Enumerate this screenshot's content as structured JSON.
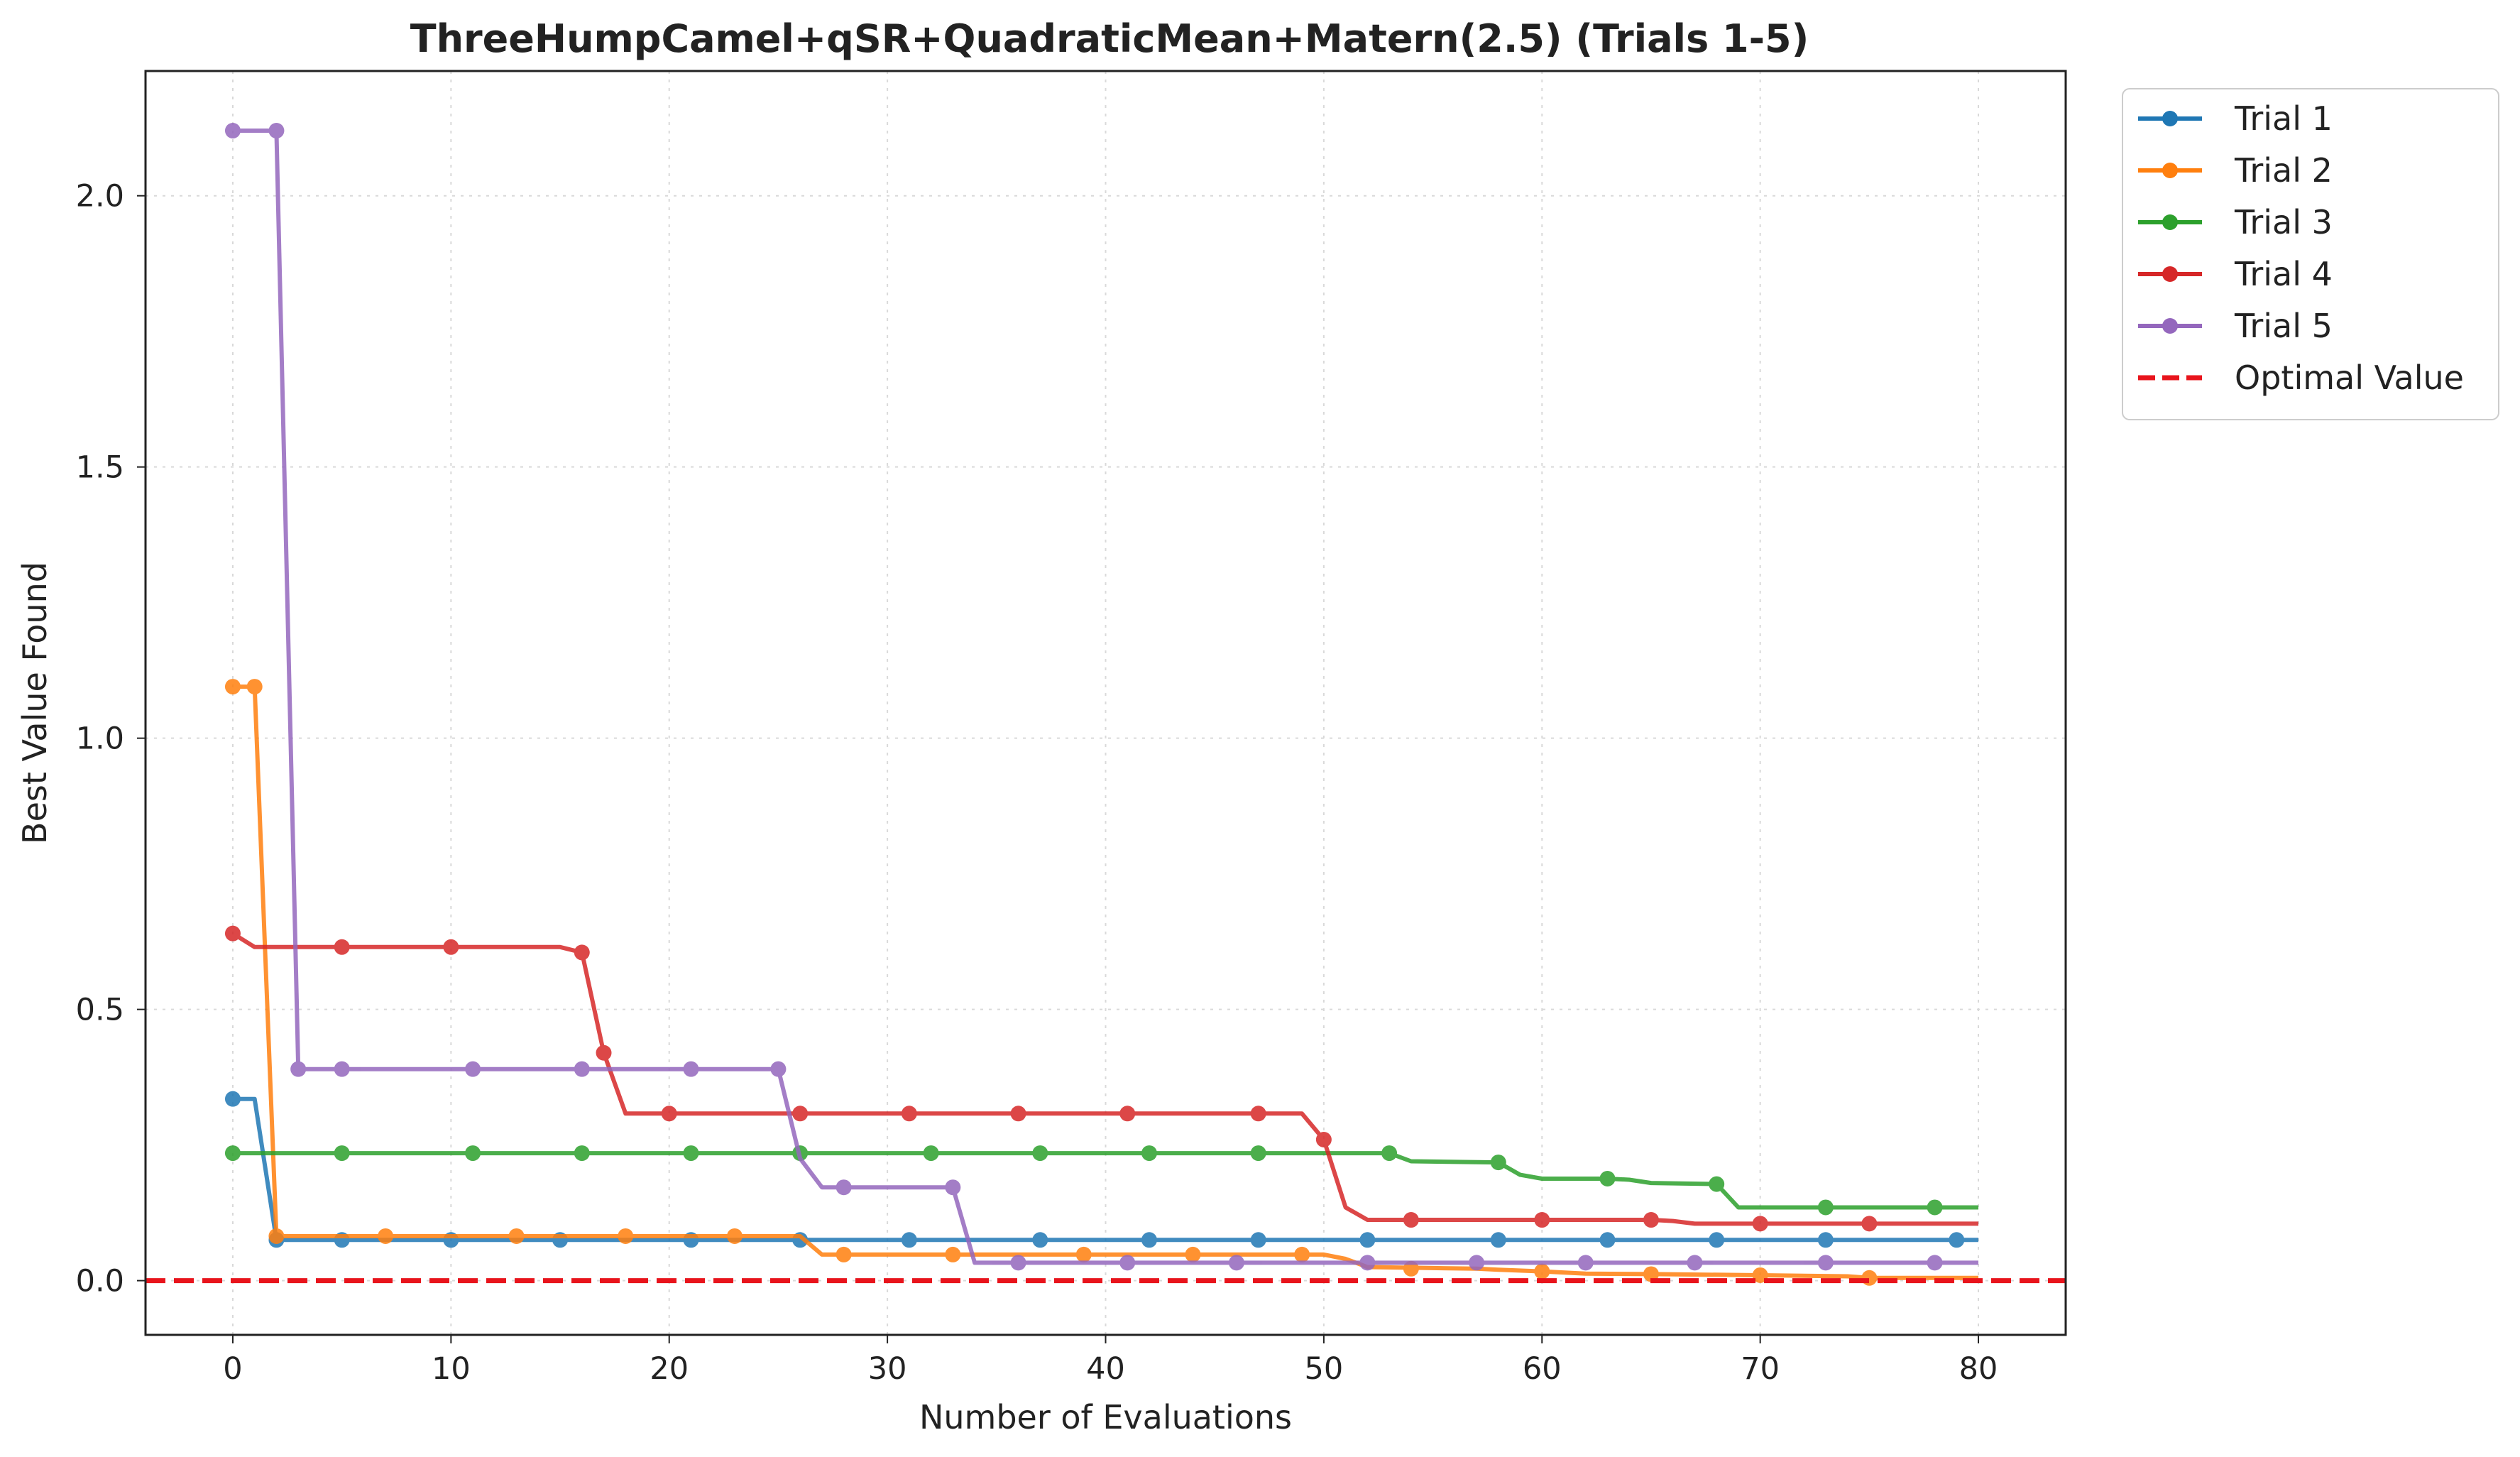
{
  "chart_data": {
    "type": "line",
    "title": "ThreeHumpCamel+qSR+QuadraticMean+Matern(2.5) (Trials 1-5)",
    "xlabel": "Number of Evaluations",
    "ylabel": "Best Value Found",
    "xlim": [
      -4,
      84
    ],
    "ylim": [
      -0.1,
      2.23
    ],
    "x_ticks": [
      0,
      10,
      20,
      30,
      40,
      50,
      60,
      70,
      80
    ],
    "y_ticks": [
      0.0,
      0.5,
      1.0,
      1.5,
      2.0
    ],
    "x_tick_labels": [
      "0",
      "10",
      "20",
      "30",
      "40",
      "50",
      "60",
      "70",
      "80"
    ],
    "y_tick_labels": [
      "0.0",
      "0.5",
      "1.0",
      "1.5",
      "2.0"
    ],
    "grid": true,
    "legend_position": "outside-top-right",
    "series": [
      {
        "name": "Trial 1",
        "color": "#1f77b4",
        "line": [
          [
            0,
            0.335
          ],
          [
            1,
            0.335
          ],
          [
            2,
            0.075
          ],
          [
            80,
            0.075
          ]
        ],
        "markers": [
          [
            0,
            0.335
          ],
          [
            2,
            0.075
          ],
          [
            5,
            0.075
          ],
          [
            10,
            0.075
          ],
          [
            15,
            0.075
          ],
          [
            21,
            0.075
          ],
          [
            26,
            0.075
          ],
          [
            31,
            0.075
          ],
          [
            37,
            0.075
          ],
          [
            42,
            0.075
          ],
          [
            47,
            0.075
          ],
          [
            52,
            0.075
          ],
          [
            58,
            0.075
          ],
          [
            63,
            0.075
          ],
          [
            68,
            0.075
          ],
          [
            73,
            0.075
          ],
          [
            79,
            0.075
          ]
        ]
      },
      {
        "name": "Trial 2",
        "color": "#ff7f0e",
        "line": [
          [
            0,
            1.095
          ],
          [
            1,
            1.095
          ],
          [
            2,
            0.082
          ],
          [
            26,
            0.082
          ],
          [
            27,
            0.048
          ],
          [
            50,
            0.048
          ],
          [
            51,
            0.04
          ],
          [
            52,
            0.025
          ],
          [
            57,
            0.022
          ],
          [
            58,
            0.02
          ],
          [
            60,
            0.017
          ],
          [
            62,
            0.013
          ],
          [
            65,
            0.012
          ],
          [
            70,
            0.01
          ],
          [
            74,
            0.008
          ],
          [
            75,
            0.005
          ],
          [
            80,
            0.005
          ]
        ],
        "markers": [
          [
            0,
            1.095
          ],
          [
            1,
            1.095
          ],
          [
            2,
            0.082
          ],
          [
            7,
            0.082
          ],
          [
            13,
            0.082
          ],
          [
            18,
            0.082
          ],
          [
            23,
            0.082
          ],
          [
            28,
            0.048
          ],
          [
            33,
            0.048
          ],
          [
            39,
            0.048
          ],
          [
            44,
            0.048
          ],
          [
            49,
            0.048
          ],
          [
            54,
            0.022
          ],
          [
            60,
            0.017
          ],
          [
            65,
            0.012
          ],
          [
            70,
            0.01
          ],
          [
            75,
            0.005
          ]
        ]
      },
      {
        "name": "Trial 3",
        "color": "#2ca02c",
        "line": [
          [
            0,
            0.235
          ],
          [
            53,
            0.235
          ],
          [
            54,
            0.22
          ],
          [
            58,
            0.218
          ],
          [
            59,
            0.195
          ],
          [
            60,
            0.188
          ],
          [
            63,
            0.188
          ],
          [
            64,
            0.186
          ],
          [
            65,
            0.18
          ],
          [
            68,
            0.178
          ],
          [
            69,
            0.135
          ],
          [
            80,
            0.135
          ]
        ],
        "markers": [
          [
            0,
            0.235
          ],
          [
            5,
            0.235
          ],
          [
            11,
            0.235
          ],
          [
            16,
            0.235
          ],
          [
            21,
            0.235
          ],
          [
            26,
            0.235
          ],
          [
            32,
            0.235
          ],
          [
            37,
            0.235
          ],
          [
            42,
            0.235
          ],
          [
            47,
            0.235
          ],
          [
            53,
            0.235
          ],
          [
            58,
            0.218
          ],
          [
            63,
            0.188
          ],
          [
            68,
            0.178
          ],
          [
            73,
            0.135
          ],
          [
            78,
            0.135
          ]
        ]
      },
      {
        "name": "Trial 4",
        "color": "#d62728",
        "line": [
          [
            0,
            0.64
          ],
          [
            1,
            0.615
          ],
          [
            15,
            0.615
          ],
          [
            16,
            0.605
          ],
          [
            17,
            0.42
          ],
          [
            18,
            0.308
          ],
          [
            49,
            0.308
          ],
          [
            50,
            0.26
          ],
          [
            51,
            0.135
          ],
          [
            52,
            0.112
          ],
          [
            65,
            0.112
          ],
          [
            66,
            0.11
          ],
          [
            67,
            0.105
          ],
          [
            80,
            0.105
          ]
        ],
        "markers": [
          [
            0,
            0.64
          ],
          [
            5,
            0.615
          ],
          [
            10,
            0.615
          ],
          [
            16,
            0.605
          ],
          [
            17,
            0.42
          ],
          [
            20,
            0.308
          ],
          [
            26,
            0.308
          ],
          [
            31,
            0.308
          ],
          [
            36,
            0.308
          ],
          [
            41,
            0.308
          ],
          [
            47,
            0.308
          ],
          [
            50,
            0.26
          ],
          [
            54,
            0.112
          ],
          [
            60,
            0.112
          ],
          [
            65,
            0.112
          ],
          [
            70,
            0.105
          ],
          [
            75,
            0.105
          ]
        ]
      },
      {
        "name": "Trial 5",
        "color": "#9467bd",
        "line": [
          [
            0,
            2.12
          ],
          [
            2,
            2.12
          ],
          [
            3,
            0.39
          ],
          [
            25,
            0.39
          ],
          [
            26,
            0.225
          ],
          [
            27,
            0.172
          ],
          [
            33,
            0.172
          ],
          [
            34,
            0.033
          ],
          [
            80,
            0.033
          ]
        ],
        "markers": [
          [
            0,
            2.12
          ],
          [
            2,
            2.12
          ],
          [
            3,
            0.39
          ],
          [
            5,
            0.39
          ],
          [
            11,
            0.39
          ],
          [
            16,
            0.39
          ],
          [
            21,
            0.39
          ],
          [
            25,
            0.39
          ],
          [
            28,
            0.172
          ],
          [
            33,
            0.172
          ],
          [
            36,
            0.033
          ],
          [
            41,
            0.033
          ],
          [
            46,
            0.033
          ],
          [
            52,
            0.033
          ],
          [
            57,
            0.033
          ],
          [
            62,
            0.033
          ],
          [
            67,
            0.033
          ],
          [
            73,
            0.033
          ],
          [
            78,
            0.033
          ]
        ]
      }
    ],
    "reference_line": {
      "name": "Optimal Value",
      "y": 0.0,
      "color": "#e8141c",
      "style": "dashed"
    }
  }
}
